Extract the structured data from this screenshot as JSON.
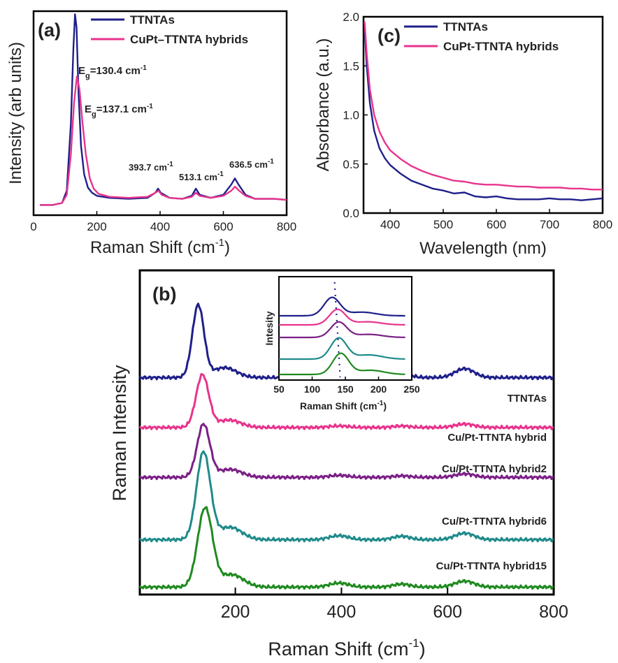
{
  "colors": {
    "navy": "#1f1f8a",
    "magenta": "#e8338c",
    "purple": "#7b1f86",
    "teal": "#1f8a8a",
    "green": "#1f8a1f"
  },
  "chart_data": [
    {
      "id": "a",
      "type": "line",
      "panel_label": "(a)",
      "xlabel_pre": "Raman Shift (cm",
      "xlabel_sup": "-1",
      "xlabel_post": ")",
      "ylabel": "Intensity (arb units)",
      "xlim": [
        0,
        800
      ],
      "xticks": [
        0,
        200,
        400,
        600,
        800
      ],
      "ylim": [
        0,
        1
      ],
      "legend_position": "top-right",
      "series": [
        {
          "name": "TTNTAs",
          "color": "#1f1f8a",
          "x": [
            20,
            60,
            90,
            105,
            118,
            126,
            131,
            136,
            142,
            150,
            160,
            172,
            185,
            200,
            240,
            300,
            360,
            385,
            393.7,
            402,
            430,
            470,
            500,
            513.1,
            525,
            560,
            600,
            625,
            636.5,
            648,
            670,
            700,
            760,
            800
          ],
          "y": [
            0.05,
            0.05,
            0.06,
            0.12,
            0.45,
            0.82,
            0.985,
            0.92,
            0.6,
            0.34,
            0.2,
            0.135,
            0.11,
            0.095,
            0.085,
            0.08,
            0.085,
            0.11,
            0.13,
            0.11,
            0.085,
            0.08,
            0.095,
            0.13,
            0.1,
            0.085,
            0.1,
            0.15,
            0.18,
            0.15,
            0.1,
            0.08,
            0.08,
            0.075
          ]
        },
        {
          "name": "CuPt–TTNTA hybrids",
          "color": "#e8338c",
          "x": [
            20,
            60,
            90,
            105,
            118,
            128,
            137.1,
            145,
            155,
            165,
            178,
            190,
            205,
            240,
            300,
            360,
            385,
            395,
            405,
            430,
            470,
            500,
            513,
            525,
            560,
            600,
            625,
            637,
            650,
            670,
            700,
            760,
            800
          ],
          "y": [
            0.05,
            0.05,
            0.06,
            0.1,
            0.3,
            0.55,
            0.68,
            0.62,
            0.45,
            0.3,
            0.18,
            0.13,
            0.105,
            0.09,
            0.085,
            0.09,
            0.11,
            0.12,
            0.1,
            0.085,
            0.08,
            0.09,
            0.11,
            0.095,
            0.085,
            0.095,
            0.12,
            0.14,
            0.12,
            0.095,
            0.08,
            0.08,
            0.075
          ]
        }
      ],
      "annotations": [
        {
          "pre": "E",
          "sub": "g",
          "post": "=130.4 cm",
          "sup": "-1"
        },
        {
          "pre": "E",
          "sub": "g",
          "post": "=137.1 cm",
          "sup": "-1"
        },
        {
          "pre": "",
          "sub": "",
          "post": "393.7 cm",
          "sup": "-1"
        },
        {
          "pre": "",
          "sub": "",
          "post": "513.1 cm",
          "sup": "-1"
        },
        {
          "pre": "",
          "sub": "",
          "post": "636.5 cm",
          "sup": "-1"
        }
      ]
    },
    {
      "id": "c",
      "type": "line",
      "panel_label": "(c)",
      "xlabel": "Wavelength (nm)",
      "ylabel": "Absorbance (a.u.)",
      "xlim": [
        350,
        800
      ],
      "xticks": [
        400,
        500,
        600,
        700,
        800
      ],
      "ylim": [
        0,
        2
      ],
      "yticks": [
        0.0,
        0.5,
        1.0,
        1.5,
        2.0
      ],
      "ytick_labels": [
        "0.0",
        "0.5",
        "1.0",
        "1.5",
        "2.0"
      ],
      "legend_position": "top-right",
      "series": [
        {
          "name": "TTNTAs",
          "color": "#1f1f8a",
          "x": [
            352,
            356,
            362,
            370,
            380,
            390,
            400,
            420,
            440,
            460,
            480,
            500,
            520,
            540,
            560,
            580,
            600,
            620,
            640,
            660,
            680,
            700,
            720,
            740,
            760,
            780,
            800
          ],
          "y": [
            1.9,
            1.5,
            1.12,
            0.84,
            0.66,
            0.56,
            0.49,
            0.4,
            0.33,
            0.29,
            0.25,
            0.23,
            0.2,
            0.21,
            0.17,
            0.16,
            0.17,
            0.15,
            0.14,
            0.14,
            0.14,
            0.15,
            0.14,
            0.14,
            0.13,
            0.14,
            0.15
          ]
        },
        {
          "name": "CuPt-TTNTA hybrids",
          "color": "#e8338c",
          "x": [
            352,
            356,
            362,
            370,
            380,
            390,
            400,
            420,
            440,
            460,
            480,
            500,
            520,
            540,
            560,
            580,
            600,
            620,
            640,
            660,
            680,
            700,
            720,
            740,
            760,
            780,
            800
          ],
          "y": [
            1.95,
            1.62,
            1.26,
            1.0,
            0.83,
            0.72,
            0.64,
            0.55,
            0.48,
            0.43,
            0.39,
            0.36,
            0.33,
            0.32,
            0.3,
            0.29,
            0.29,
            0.28,
            0.27,
            0.27,
            0.26,
            0.26,
            0.26,
            0.25,
            0.25,
            0.24,
            0.24
          ]
        }
      ]
    },
    {
      "id": "b",
      "type": "line",
      "panel_label": "(b)",
      "xlabel_pre": "Raman Shift (cm",
      "xlabel_sup": "-1",
      "xlabel_post": ")",
      "ylabel": "Raman Intensity",
      "xlim": [
        20,
        800
      ],
      "xticks": [
        200,
        400,
        600,
        800
      ],
      "series": [
        {
          "name": "TTNTAs",
          "color": "#1f1f8a",
          "offset": 4.2,
          "peak": 130,
          "peak_h": 1.45,
          "width": 11,
          "shoulder": 0.2,
          "bumps": [
            0.08,
            0.09,
            0.18
          ]
        },
        {
          "name": "Cu/Pt-TTNTA hybrid",
          "color": "#e8338c",
          "offset": 3.2,
          "peak": 138,
          "peak_h": 1.05,
          "width": 12,
          "shoulder": 0.15,
          "bumps": [
            0.03,
            0.03,
            0.07
          ]
        },
        {
          "name": "Cu/Pt-TTNTA hybrid2",
          "color": "#7b1f86",
          "offset": 2.2,
          "peak": 140,
          "peak_h": 1.06,
          "width": 12,
          "shoulder": 0.16,
          "bumps": [
            0.04,
            0.03,
            0.07
          ]
        },
        {
          "name": "Cu/Pt-TTNTA hybrid6",
          "color": "#1f8a8a",
          "offset": 0.95,
          "peak": 140,
          "peak_h": 1.75,
          "width": 13,
          "shoulder": 0.25,
          "bumps": [
            0.08,
            0.07,
            0.13
          ]
        },
        {
          "name": "Cu/Pt-TTNTA hybrid15",
          "color": "#1f8a1f",
          "offset": 0.0,
          "peak": 143,
          "peak_h": 1.58,
          "width": 14,
          "shoulder": 0.25,
          "bumps": [
            0.08,
            0.06,
            0.12
          ]
        }
      ],
      "inset": {
        "xlabel_pre": "Raman Shift (cm",
        "xlabel_sup": "-1",
        "xlabel_post": ")",
        "ylabel": "Intesity",
        "xlim": [
          50,
          250
        ],
        "xticks": [
          50,
          100,
          150,
          200,
          250
        ],
        "reference_line_x": 138
      }
    }
  ]
}
